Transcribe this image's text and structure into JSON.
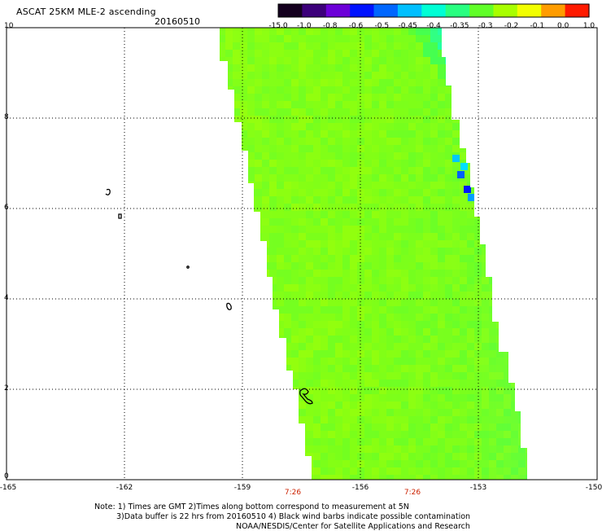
{
  "header": {
    "title": "ASCAT 25KM MLE-2 ascending",
    "date": "20160510"
  },
  "colorbar": {
    "labels": [
      "-15.0",
      "-1.0",
      "-0.8",
      "-0.6",
      "-0.5",
      "-0.45",
      "-0.4",
      "-0.35",
      "-0.3",
      "-0.2",
      "-0.1",
      "0.0",
      "1.0"
    ],
    "colors": [
      "#14001e",
      "#3c007a",
      "#6c00d8",
      "#0012ff",
      "#0066ff",
      "#00bfff",
      "#00ffd5",
      "#28ff80",
      "#60ff28",
      "#a8ff00",
      "#f2ff00",
      "#ff9c00",
      "#ff1a00"
    ]
  },
  "axes": {
    "y_ticks": [
      "10",
      "8",
      "6",
      "4",
      "2",
      "0"
    ],
    "x_ticks": [
      "-165",
      "-162",
      "-159",
      "-156",
      "-153",
      "-150"
    ],
    "x_range": [
      -165,
      -150
    ],
    "y_range": [
      0,
      10
    ],
    "grid": "dotted"
  },
  "swath_times": [
    "7:26",
    "7:26"
  ],
  "notes": {
    "line1": "Note: 1) Times are GMT 2)Times along bottom correspond to measurement at 5N",
    "line2": "3)Data buffer is 22 hrs from 20160510 4) Black wind barbs indicate possible contamination",
    "line3": "NOAA/NESDIS/Center for Satellite Applications and Research"
  },
  "chart_data": {
    "type": "heatmap",
    "title": "ASCAT 25KM MLE-2 ascending",
    "date": "20160510",
    "x_range": [
      -165,
      -150
    ],
    "y_range": [
      0,
      10
    ],
    "colorbar_values": [
      -15.0,
      -1.0,
      -0.8,
      -0.6,
      -0.5,
      -0.45,
      -0.4,
      -0.35,
      -0.3,
      -0.2,
      -0.1,
      0.0,
      1.0
    ],
    "swath": {
      "corners_lonlat": [
        [
          -159.6,
          10.0
        ],
        [
          -154.0,
          10.0
        ],
        [
          -152.5,
          0.0
        ],
        [
          -157.8,
          0.0
        ]
      ],
      "dominant_range": [
        -0.3,
        -0.2
      ],
      "low_values_along_east_edge": [
        -0.45,
        -0.4
      ]
    }
  }
}
